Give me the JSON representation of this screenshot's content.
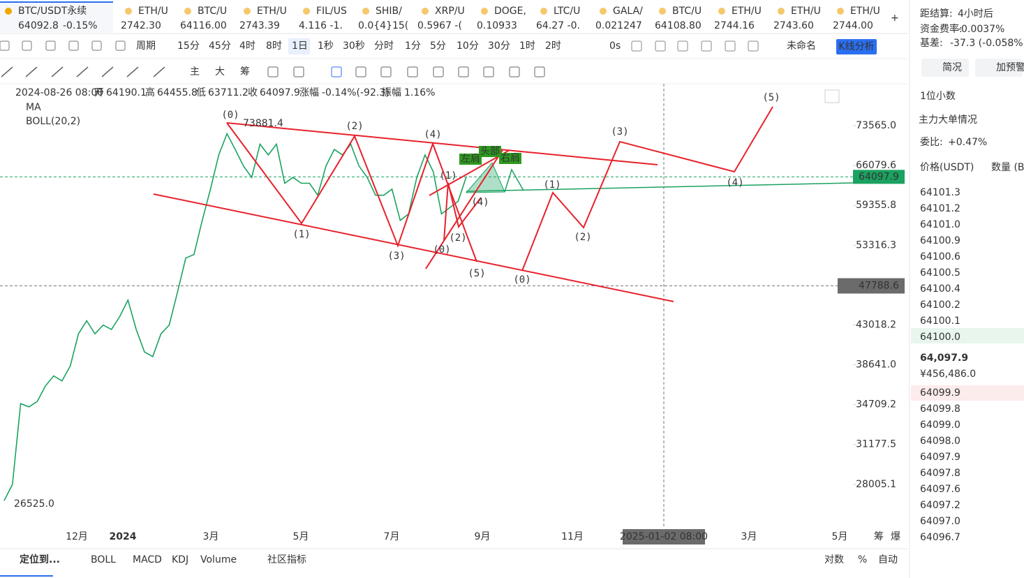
{
  "tickers": [
    {
      "name": "BTC/USDT永续",
      "price": "64092.8",
      "change": "-0.15%",
      "color": "#e5323c"
    },
    {
      "name": "ETH/U",
      "price": "2742.30",
      "color": "#e5323c"
    },
    {
      "name": "BTC/U",
      "price": "64116.00",
      "color": "#e5323c"
    },
    {
      "name": "ETH/U",
      "price": "2743.39",
      "color": "#e5323c"
    },
    {
      "name": "FIL/US",
      "price": "4.116 -1.",
      "color": "#17a34a"
    },
    {
      "name": "SHIB/",
      "price": "0.0{4}15(",
      "color": "#17a34a"
    },
    {
      "name": "XRP/U",
      "price": "0.5967 -(",
      "color": "#e5323c"
    },
    {
      "name": "DOGE,",
      "price": "0.10933",
      "color": "#e5323c"
    },
    {
      "name": "LTC/U",
      "price": "64.27 -0.",
      "color": "#e5323c"
    },
    {
      "name": "GALA/",
      "price": "0.021247",
      "color": "#17a34a"
    },
    {
      "name": "BTC/U",
      "price": "64108.80",
      "color": "#e5323c"
    },
    {
      "name": "ETH/U",
      "price": "2744.16",
      "color": "#e5323c"
    },
    {
      "name": "ETH/U",
      "price": "2743.60",
      "color": "#e5323c"
    },
    {
      "name": "ETH/U",
      "price": "2744.00",
      "color": "#e5323c"
    }
  ],
  "toolbar": {
    "period": "周期",
    "intervals": [
      "15分",
      "45分",
      "4时",
      "8时",
      "1日",
      "1秒",
      "30秒",
      "分时",
      "1分",
      "5分",
      "10分",
      "30分",
      "1时",
      "2时"
    ],
    "countdown": "0s",
    "layout_name": "未命名",
    "analysis_button": "K线分析"
  },
  "drawing_tools": [
    "主",
    "大",
    "筹"
  ],
  "info_line": [
    "2024-08-26 08:00",
    "开",
    "64190.1",
    "高",
    "64455.8",
    "低",
    "63711.2",
    "收",
    "64097.9",
    "涨幅",
    "-0.14%(-92.3)",
    "振幅",
    "1.16%"
  ],
  "indicators": [
    "MA",
    "BOLL(20,2)"
  ],
  "chart_data": {
    "type": "line",
    "log_scale": true,
    "color": "#1aa260",
    "values": [
      26800,
      28000,
      34800,
      34500,
      35000,
      36500,
      37500,
      37000,
      38500,
      42000,
      43500,
      42000,
      43000,
      42500,
      44000,
      46000,
      42500,
      40000,
      39500,
      42000,
      43000,
      47000,
      51500,
      52000,
      57000,
      62000,
      68000,
      72000,
      69000,
      66000,
      64000,
      70000,
      68000,
      70000,
      63000,
      64000,
      63000,
      63000,
      61000,
      66000,
      69000,
      68000,
      70000,
      66000,
      64000,
      61000,
      61000,
      62000,
      57000,
      58000,
      64000,
      68000,
      65000,
      58000,
      59000,
      60000,
      64097.9
    ],
    "ylim": [
      24960,
      82360
    ],
    "yticks": [
      {
        "value": 73565,
        "label": "73565.0"
      },
      {
        "value": 66079.6,
        "label": "66079.6"
      },
      {
        "value": 59355.8,
        "label": "59355.8"
      },
      {
        "value": 53316.3,
        "label": "53316.3"
      },
      {
        "value": 43018.2,
        "label": "43018.2"
      },
      {
        "value": 38641,
        "label": "38641.0"
      },
      {
        "value": 34709.2,
        "label": "34709.2"
      },
      {
        "value": 31177.5,
        "label": "31177.5"
      },
      {
        "value": 28005.1,
        "label": "28005.1"
      }
    ],
    "xticks": [
      "12月",
      "2024",
      "3月",
      "5月",
      "7月",
      "9月",
      "11月",
      "3月",
      "5月"
    ],
    "current_price": {
      "value": 64097.9,
      "label": "64097.9"
    },
    "crosshair_price": {
      "value": 47788.6,
      "label": "47788.6"
    },
    "crosshair_date": "2025-01-02 08:00",
    "high_label": "73881.4",
    "low_label": "26525.0",
    "wave_labels": [
      "(0)",
      "(2)",
      "(4)",
      "(1)",
      "(3)",
      "(5)",
      "(0)",
      "(1)",
      "(2)",
      "(0)",
      "(4)",
      "(1)",
      "(2)",
      "(3)",
      "(4)",
      "(5)"
    ],
    "pattern_labels": [
      "左肩",
      "头部",
      "右肩"
    ],
    "axis_extra": [
      "筹",
      "爆"
    ]
  },
  "bottom_bar": {
    "locate": "定位到...",
    "indicators": [
      "BOLL",
      "MACD",
      "KDJ",
      "Volume"
    ],
    "community": "社区指标",
    "right": [
      "对数",
      "%",
      "自动"
    ]
  },
  "side_panel": {
    "settlement_label": "距结算:",
    "settlement": "4小时后",
    "funding_label": "资金费率:",
    "funding": "-0.0037%",
    "basis_label": "基差:",
    "basis": "-37.3 (-0.058%)",
    "buttons": [
      "简况",
      "加预警"
    ],
    "decimals": "1位小数",
    "big_orders": "主力大单情况",
    "ratio_label": "委比:",
    "ratio": "+0.47%",
    "price_header": "价格(USDT)",
    "qty_header": "数量 (B",
    "asks": [
      "64101.3",
      "64101.2",
      "64101.0",
      "64100.9",
      "64100.6",
      "64100.5",
      "64100.4",
      "64100.2",
      "64100.1",
      "64100.0"
    ],
    "last_price": "64,097.9",
    "cny_price": "¥456,486.0",
    "bids": [
      "64099.9",
      "64099.8",
      "64099.0",
      "64098.0",
      "64097.9",
      "64097.8",
      "64097.6",
      "64097.2",
      "64097.0",
      "64096.7"
    ]
  }
}
